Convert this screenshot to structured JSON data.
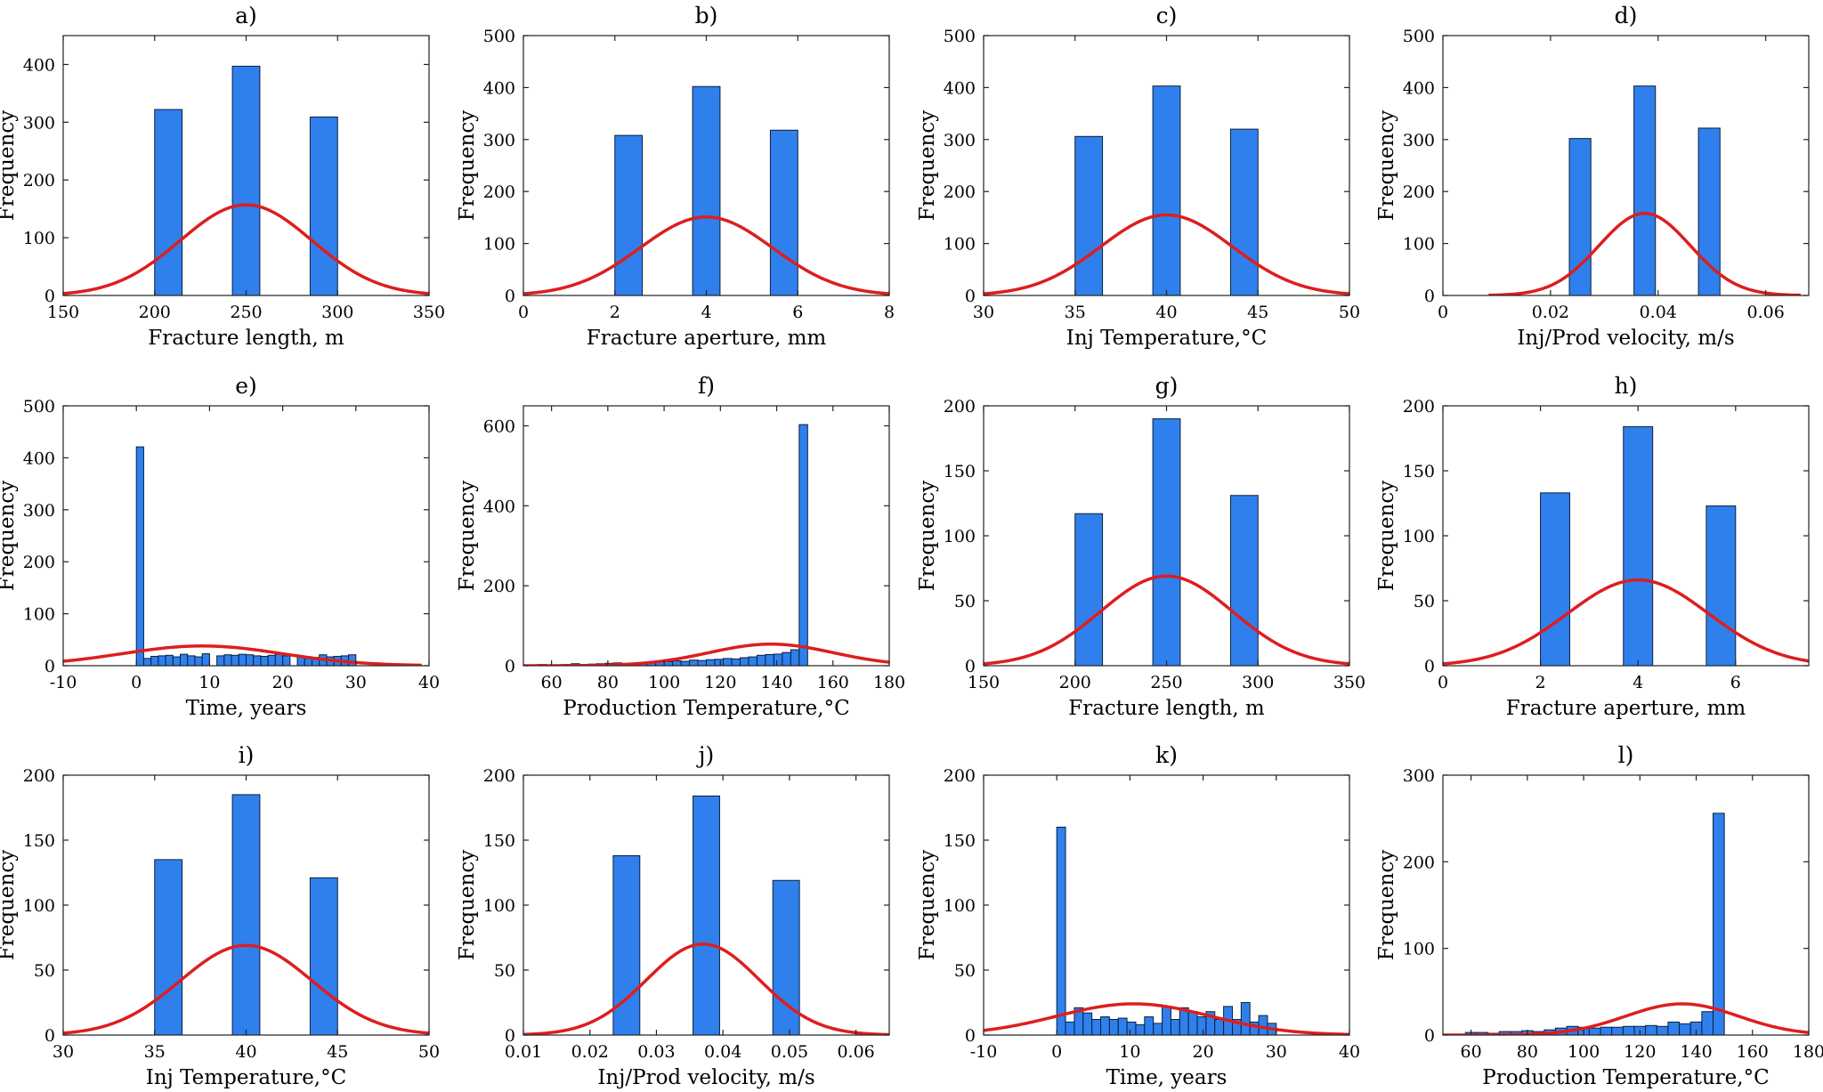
{
  "chart_data": [
    {
      "id": "a",
      "title": "a)",
      "type": "bar",
      "xlabel": "Fracture length, m",
      "ylabel": "Frequency",
      "xlim": [
        150,
        350
      ],
      "ylim": [
        0,
        450
      ],
      "xticks": [
        150,
        200,
        250,
        300,
        350
      ],
      "yticks": [
        0,
        100,
        200,
        300,
        400
      ],
      "bar_width": 15,
      "bars": [
        [
          207.5,
          322
        ],
        [
          250,
          397
        ],
        [
          292.5,
          309
        ]
      ],
      "fit": {
        "mean": 250,
        "sd": 36,
        "peak": 157
      }
    },
    {
      "id": "b",
      "title": "b)",
      "type": "bar",
      "xlabel": "Fracture aperture, mm",
      "ylabel": "Frequency",
      "xlim": [
        0,
        8
      ],
      "ylim": [
        0,
        500
      ],
      "xticks": [
        0,
        2,
        4,
        6,
        8
      ],
      "yticks": [
        0,
        100,
        200,
        300,
        400,
        500
      ],
      "bar_width": 0.6,
      "bars": [
        [
          2.3,
          308
        ],
        [
          4,
          402
        ],
        [
          5.7,
          318
        ]
      ],
      "fit": {
        "mean": 4,
        "sd": 1.45,
        "peak": 151
      }
    },
    {
      "id": "c",
      "title": "c)",
      "type": "bar",
      "xlabel": "Inj Temperature,°C",
      "ylabel": "Frequency",
      "xlim": [
        30,
        50
      ],
      "ylim": [
        0,
        500
      ],
      "xticks": [
        30,
        35,
        40,
        45,
        50
      ],
      "yticks": [
        0,
        100,
        200,
        300,
        400,
        500
      ],
      "bar_width": 1.5,
      "bars": [
        [
          35.75,
          306
        ],
        [
          40,
          403
        ],
        [
          44.25,
          320
        ]
      ],
      "fit": {
        "mean": 40,
        "sd": 3.6,
        "peak": 155
      }
    },
    {
      "id": "d",
      "title": "d)",
      "type": "bar",
      "xlabel": "Inj/Prod velocity, m/s",
      "ylabel": "Frequency",
      "xlim": [
        0,
        0.068
      ],
      "ylim": [
        0,
        500
      ],
      "xticks": [
        0,
        0.02,
        0.04,
        0.06
      ],
      "yticks": [
        0,
        100,
        200,
        300,
        400,
        500
      ],
      "bar_width": 0.004,
      "bars": [
        [
          0.0255,
          302
        ],
        [
          0.0375,
          403
        ],
        [
          0.0495,
          322
        ]
      ],
      "fit": {
        "mean": 0.0375,
        "sd": 0.0085,
        "peak": 158,
        "range": [
          0.0085,
          0.0665
        ]
      }
    },
    {
      "id": "e",
      "title": "e)",
      "type": "bar",
      "xlabel": "Time, years",
      "ylabel": "Frequency",
      "xlim": [
        -10,
        40
      ],
      "ylim": [
        0,
        500
      ],
      "xticks": [
        -10,
        0,
        10,
        20,
        30,
        40
      ],
      "yticks": [
        0,
        100,
        200,
        300,
        400,
        500
      ],
      "bar_width": 1,
      "bars": [
        [
          0.5,
          421
        ],
        [
          1.5,
          14
        ],
        [
          2.5,
          18
        ],
        [
          3.5,
          19
        ],
        [
          4.5,
          20
        ],
        [
          5.5,
          17
        ],
        [
          6.5,
          22
        ],
        [
          7.5,
          19
        ],
        [
          8.5,
          17
        ],
        [
          9.5,
          23
        ],
        [
          11.5,
          19
        ],
        [
          12.5,
          21
        ],
        [
          13.5,
          20
        ],
        [
          14.5,
          22
        ],
        [
          15.5,
          21
        ],
        [
          16.5,
          19
        ],
        [
          17.5,
          18
        ],
        [
          18.5,
          20
        ],
        [
          19.5,
          22
        ],
        [
          20.5,
          19
        ],
        [
          22.5,
          18
        ],
        [
          23.5,
          14
        ],
        [
          24.5,
          16
        ],
        [
          25.5,
          21
        ],
        [
          26.5,
          17
        ],
        [
          27.5,
          18
        ],
        [
          28.5,
          19
        ],
        [
          29.5,
          21
        ]
      ],
      "fit": {
        "mean": 9,
        "sd": 11,
        "peak": 38,
        "range": [
          -10,
          39
        ]
      }
    },
    {
      "id": "f",
      "title": "f)",
      "type": "bar",
      "xlabel": "Production Temperature,°C",
      "ylabel": "Frequency",
      "xlim": [
        50,
        180
      ],
      "ylim": [
        0,
        650
      ],
      "xticks": [
        60,
        80,
        100,
        120,
        140,
        160,
        180
      ],
      "yticks": [
        0,
        200,
        400,
        600
      ],
      "bar_width": 3,
      "bars": [
        [
          56.5,
          3
        ],
        [
          59.5,
          2
        ],
        [
          62.5,
          1
        ],
        [
          65.5,
          3
        ],
        [
          68.5,
          5
        ],
        [
          71.5,
          3
        ],
        [
          74.5,
          4
        ],
        [
          77.5,
          5
        ],
        [
          80.5,
          6
        ],
        [
          83.5,
          7
        ],
        [
          86.5,
          5
        ],
        [
          89.5,
          6
        ],
        [
          92.5,
          8
        ],
        [
          95.5,
          7
        ],
        [
          98.5,
          9
        ],
        [
          101.5,
          10
        ],
        [
          104.5,
          12
        ],
        [
          107.5,
          11
        ],
        [
          110.5,
          14
        ],
        [
          113.5,
          13
        ],
        [
          116.5,
          15
        ],
        [
          119.5,
          16
        ],
        [
          122.5,
          18
        ],
        [
          125.5,
          17
        ],
        [
          128.5,
          20
        ],
        [
          131.5,
          22
        ],
        [
          134.5,
          26
        ],
        [
          137.5,
          28
        ],
        [
          140.5,
          29
        ],
        [
          143.5,
          33
        ],
        [
          146.5,
          40
        ],
        [
          149.5,
          603
        ]
      ],
      "fit": {
        "mean": 138,
        "sd": 22,
        "peak": 54
      }
    },
    {
      "id": "g",
      "title": "g)",
      "type": "bar",
      "xlabel": "Fracture length, m",
      "ylabel": "Frequency",
      "xlim": [
        150,
        350
      ],
      "ylim": [
        0,
        200
      ],
      "xticks": [
        150,
        200,
        250,
        300,
        350
      ],
      "yticks": [
        0,
        50,
        100,
        150,
        200
      ],
      "bar_width": 15,
      "bars": [
        [
          207.5,
          117
        ],
        [
          250,
          190
        ],
        [
          292.5,
          131
        ]
      ],
      "fit": {
        "mean": 250,
        "sd": 36,
        "peak": 69
      }
    },
    {
      "id": "h",
      "title": "h)",
      "type": "bar",
      "xlabel": "Fracture aperture, mm",
      "ylabel": "Frequency",
      "xlim": [
        0,
        7.5
      ],
      "ylim": [
        0,
        200
      ],
      "xticks": [
        0,
        2,
        4,
        6
      ],
      "yticks": [
        0,
        50,
        100,
        150,
        200
      ],
      "bar_width": 0.6,
      "bars": [
        [
          2.3,
          133
        ],
        [
          4,
          184
        ],
        [
          5.7,
          123
        ]
      ],
      "fit": {
        "mean": 4,
        "sd": 1.45,
        "peak": 66
      }
    },
    {
      "id": "i",
      "title": "i)",
      "type": "bar",
      "xlabel": "Inj Temperature,°C",
      "ylabel": "Frequency",
      "xlim": [
        30,
        50
      ],
      "ylim": [
        0,
        200
      ],
      "xticks": [
        30,
        35,
        40,
        45,
        50
      ],
      "yticks": [
        0,
        50,
        100,
        150,
        200
      ],
      "bar_width": 1.5,
      "bars": [
        [
          35.75,
          135
        ],
        [
          40,
          185
        ],
        [
          44.25,
          121
        ]
      ],
      "fit": {
        "mean": 40,
        "sd": 3.6,
        "peak": 69
      }
    },
    {
      "id": "j",
      "title": "j)",
      "type": "bar",
      "xlabel": "Inj/Prod velocity, m/s",
      "ylabel": "Frequency",
      "xlim": [
        0.01,
        0.065
      ],
      "ylim": [
        0,
        200
      ],
      "xticks": [
        0.01,
        0.02,
        0.03,
        0.04,
        0.05,
        0.06
      ],
      "yticks": [
        0,
        50,
        100,
        150,
        200
      ],
      "bar_width": 0.004,
      "bars": [
        [
          0.0255,
          138
        ],
        [
          0.0375,
          184
        ],
        [
          0.0495,
          119
        ]
      ],
      "fit": {
        "mean": 0.037,
        "sd": 0.0085,
        "peak": 70
      }
    },
    {
      "id": "k",
      "title": "k)",
      "type": "bar",
      "xlabel": "Time, years",
      "ylabel": "Frequency",
      "xlim": [
        -10,
        40
      ],
      "ylim": [
        0,
        200
      ],
      "xticks": [
        -10,
        0,
        10,
        20,
        30,
        40
      ],
      "yticks": [
        0,
        50,
        100,
        150,
        200
      ],
      "bar_width": 1.2,
      "bars": [
        [
          0.6,
          160
        ],
        [
          1.8,
          10
        ],
        [
          3,
          21
        ],
        [
          4.2,
          17
        ],
        [
          5.4,
          12
        ],
        [
          6.6,
          14
        ],
        [
          7.8,
          12
        ],
        [
          9,
          13
        ],
        [
          10.2,
          10
        ],
        [
          11.4,
          8
        ],
        [
          12.6,
          14
        ],
        [
          13.8,
          9
        ],
        [
          15,
          22
        ],
        [
          16.2,
          12
        ],
        [
          17.4,
          21
        ],
        [
          18.6,
          18
        ],
        [
          19.8,
          14
        ],
        [
          21,
          18
        ],
        [
          22.2,
          12
        ],
        [
          23.4,
          22
        ],
        [
          24.6,
          12
        ],
        [
          25.8,
          25
        ],
        [
          27,
          10
        ],
        [
          28.2,
          15
        ],
        [
          29.4,
          9
        ]
      ],
      "fit": {
        "mean": 10.5,
        "sd": 10.5,
        "peak": 24
      }
    },
    {
      "id": "l",
      "title": "l)",
      "type": "bar",
      "xlabel": "Production Temperature,°C",
      "ylabel": "Frequency",
      "xlim": [
        50,
        180
      ],
      "ylim": [
        0,
        300
      ],
      "xticks": [
        60,
        80,
        100,
        120,
        140,
        160,
        180
      ],
      "yticks": [
        0,
        100,
        200,
        300
      ],
      "bar_width": 4,
      "bars": [
        [
          56,
          1
        ],
        [
          60,
          3
        ],
        [
          64,
          3
        ],
        [
          68,
          2
        ],
        [
          72,
          4
        ],
        [
          76,
          4
        ],
        [
          80,
          5
        ],
        [
          84,
          4
        ],
        [
          88,
          6
        ],
        [
          92,
          8
        ],
        [
          96,
          10
        ],
        [
          100,
          9
        ],
        [
          104,
          8
        ],
        [
          108,
          9
        ],
        [
          112,
          9
        ],
        [
          116,
          10
        ],
        [
          120,
          10
        ],
        [
          124,
          11
        ],
        [
          128,
          10
        ],
        [
          132,
          15
        ],
        [
          136,
          13
        ],
        [
          140,
          15
        ],
        [
          144,
          27
        ],
        [
          148,
          256
        ]
      ],
      "fit": {
        "mean": 135,
        "sd": 20,
        "peak": 36
      }
    }
  ]
}
